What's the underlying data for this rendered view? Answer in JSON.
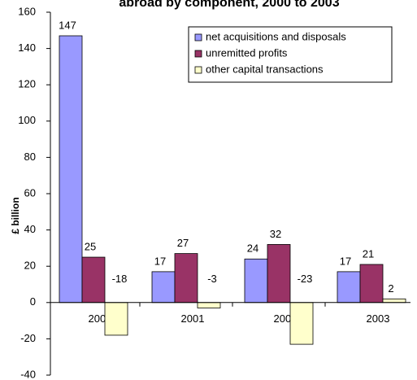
{
  "chart_data": {
    "type": "bar",
    "title": "abroad by component, 2000 to 2003",
    "y_label": "£ billion",
    "categories": [
      "2000",
      "2001",
      "2002",
      "2003"
    ],
    "series": [
      {
        "name": "net acquisitions and disposals",
        "color": "#9999ff",
        "values": [
          147,
          17,
          24,
          17
        ]
      },
      {
        "name": "unremitted profits",
        "color": "#993366",
        "values": [
          25,
          27,
          32,
          21
        ]
      },
      {
        "name": "other capital transactions",
        "color": "#ffffcc",
        "values": [
          -18,
          -3,
          -23,
          2
        ]
      }
    ],
    "ylim": [
      -40,
      160
    ],
    "yticks": [
      -40,
      -20,
      0,
      20,
      40,
      60,
      80,
      100,
      120,
      140,
      160
    ],
    "grid": false,
    "legend": "top-right"
  }
}
